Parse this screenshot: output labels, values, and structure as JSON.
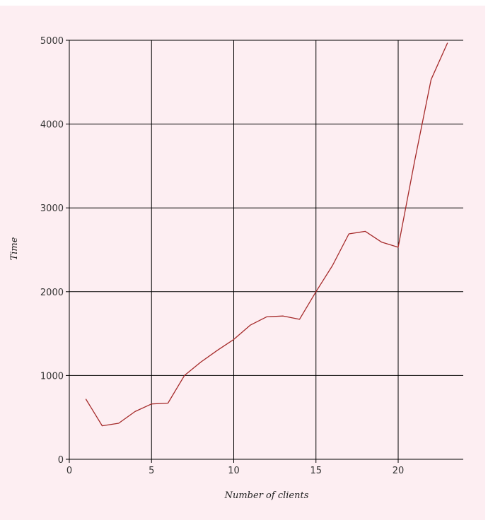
{
  "chart_data": {
    "type": "line",
    "title": "",
    "xlabel": "Number of clients",
    "ylabel": "Time",
    "xlim": [
      0,
      24
    ],
    "ylim": [
      0,
      5000
    ],
    "x_ticks": [
      0,
      5,
      10,
      15,
      20
    ],
    "y_ticks": [
      0,
      1000,
      2000,
      3000,
      4000,
      5000
    ],
    "grid": true,
    "legend": "none",
    "colors": {
      "background": "#fdeef2",
      "line": "#a52a2a",
      "grid": "#000000"
    },
    "series": [
      {
        "x": [
          1,
          2,
          3,
          4,
          5,
          6,
          7,
          8,
          9,
          10,
          11,
          12,
          13,
          14,
          15,
          16,
          17,
          18,
          19,
          20,
          21,
          22,
          23
        ],
        "values": [
          720,
          400,
          430,
          570,
          660,
          670,
          1000,
          1160,
          1300,
          1430,
          1600,
          1700,
          1710,
          1670,
          2000,
          2310,
          2690,
          2720,
          2590,
          2530,
          3560,
          4530,
          4970
        ]
      }
    ]
  }
}
